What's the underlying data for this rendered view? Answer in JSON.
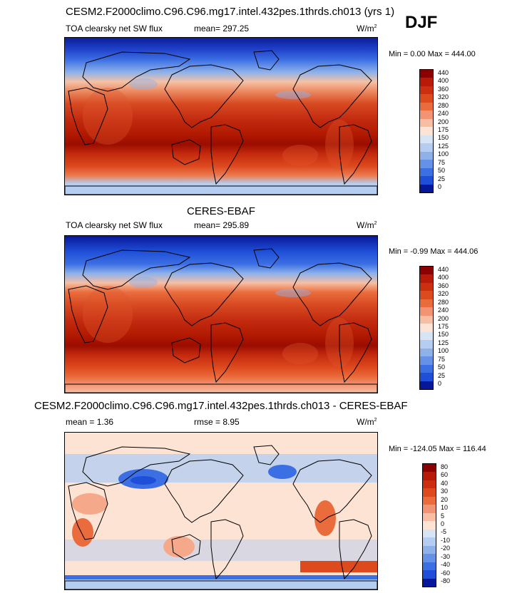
{
  "header": {
    "title": "CESM2.F2000climo.C96.C96.mg17.intel.432pes.1thrds.ch013 (yrs 1)",
    "season": "DJF"
  },
  "panels": [
    {
      "variable": "TOA clearsky net SW flux",
      "mean": "mean= 297.25",
      "units": "W/m",
      "units_sup": "2",
      "min": "Min =   0.00",
      "max": "Max = 444.00",
      "colorbar_labels": [
        "440",
        "400",
        "360",
        "320",
        "280",
        "240",
        "200",
        "175",
        "150",
        "125",
        "100",
        "75",
        "50",
        "25",
        "0"
      ]
    },
    {
      "title": "CERES-EBAF",
      "variable": "TOA clearsky net SW flux",
      "mean": "mean= 295.89",
      "units": "W/m",
      "units_sup": "2",
      "min": "Min =  -0.99",
      "max": "Max = 444.06",
      "colorbar_labels": [
        "440",
        "400",
        "360",
        "320",
        "280",
        "240",
        "200",
        "175",
        "150",
        "125",
        "100",
        "75",
        "50",
        "25",
        "0"
      ]
    },
    {
      "title": "CESM2.F2000climo.C96.C96.mg17.intel.432pes.1thrds.ch013 - CERES-EBAF",
      "mean": "mean =   1.36",
      "rmse": "rmse =   8.95",
      "units": "W/m",
      "units_sup": "2",
      "min": "Min = -124.05",
      "max": "Max = 116.44",
      "colorbar_labels": [
        "80",
        "60",
        "40",
        "30",
        "20",
        "10",
        "5",
        "0",
        "-5",
        "-10",
        "-20",
        "-30",
        "-40",
        "-60",
        "-80"
      ]
    }
  ],
  "colors": {
    "absolute_scale": [
      "#8b0000",
      "#b81a0a",
      "#cc2f10",
      "#dd4a1e",
      "#ea6c3c",
      "#f29474",
      "#f7bea4",
      "#fde3d4",
      "#d7e4f5",
      "#b5cdf0",
      "#8eb1ea",
      "#6591e6",
      "#3c6fe4",
      "#1f4fd8",
      "#07179a"
    ],
    "diff_scale": [
      "#8b0000",
      "#b81a0a",
      "#cc2f10",
      "#dd4a1e",
      "#ea6c3c",
      "#f29474",
      "#f7bea4",
      "#fde3d4",
      "#d7e4f5",
      "#b5cdf0",
      "#8eb1ea",
      "#6591e6",
      "#3c6fe4",
      "#1f4fd8",
      "#07179a"
    ],
    "diff_background": "#fde3d4",
    "diff_pos": "#f5a98a",
    "diff_neg": "#b5cdf0"
  }
}
